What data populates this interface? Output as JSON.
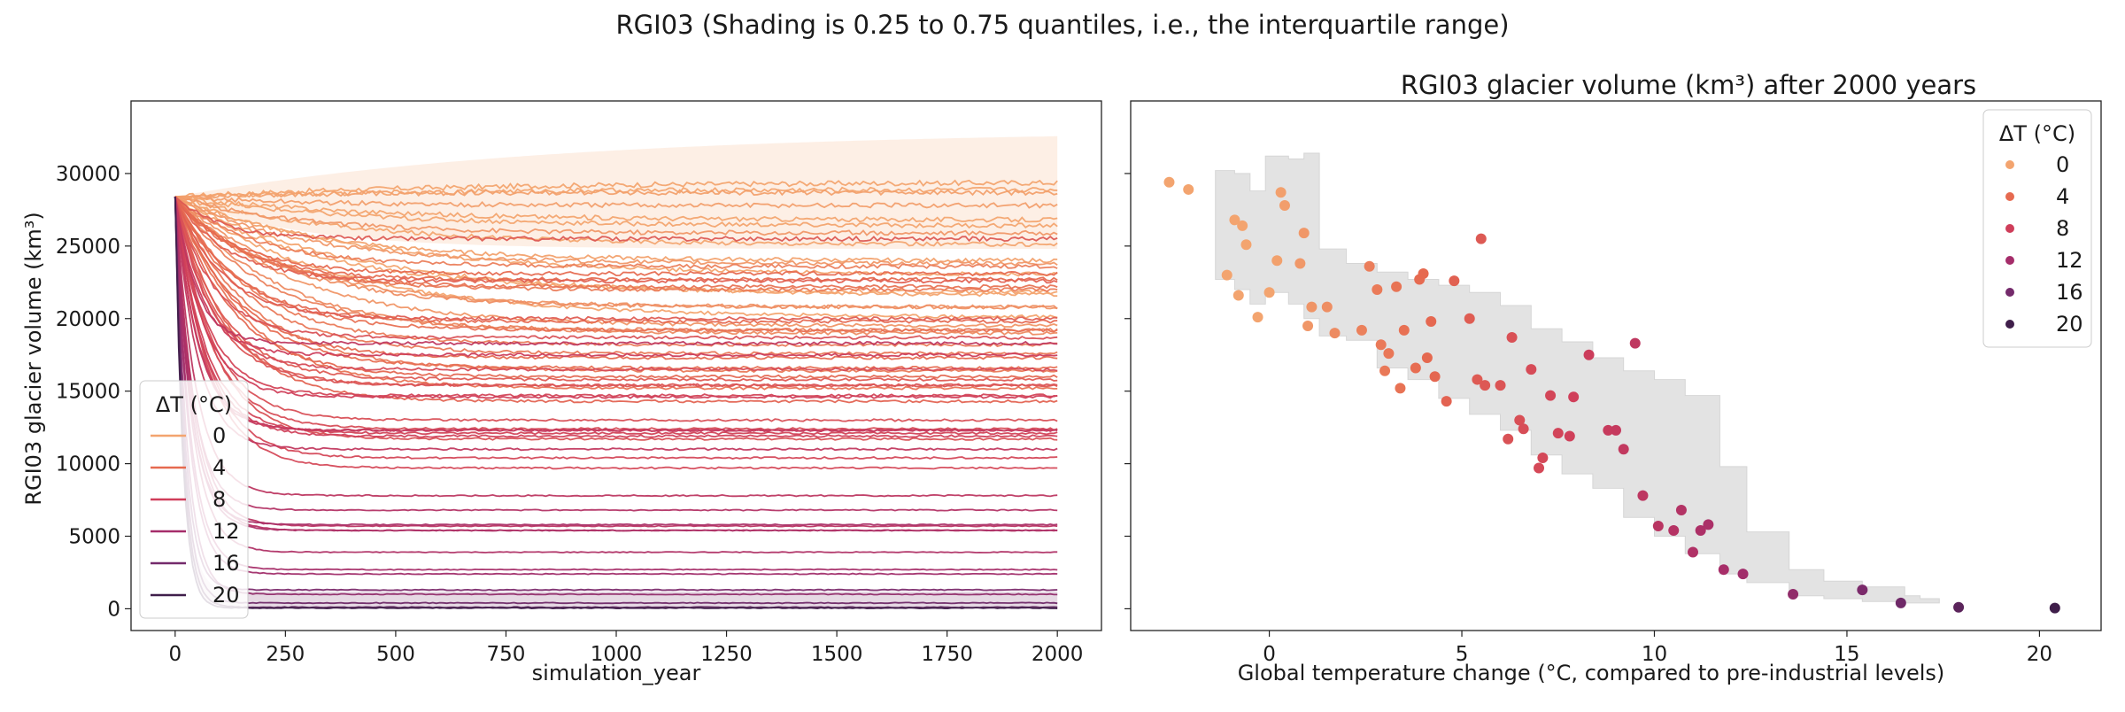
{
  "figure": {
    "suptitle": "RGI03 (Shading is 0.25 to 0.75 quantiles, i.e., the interquartile range)"
  },
  "chart_data": [
    {
      "type": "line",
      "title": "",
      "xlabel": "simulation_year",
      "ylabel": "RGI03 glacier volume (km³)",
      "xlim": [
        -100,
        2100
      ],
      "ylim": [
        -1500,
        35000
      ],
      "xticks": [
        0,
        250,
        500,
        750,
        1000,
        1250,
        1500,
        1750,
        2000
      ],
      "yticks": [
        0,
        5000,
        10000,
        15000,
        20000,
        25000,
        30000
      ],
      "xtick_labels": [
        "0",
        "250",
        "500",
        "750",
        "1000",
        "1250",
        "1500",
        "1750",
        "2000"
      ],
      "ytick_labels": [
        "0",
        "5000",
        "10000",
        "15000",
        "20000",
        "25000",
        "30000"
      ],
      "initial_volume": 28400,
      "x_range": [
        0,
        2000
      ],
      "grid": false,
      "legend": {
        "title": "ΔT (°C)",
        "placement": "lower-left",
        "entries": [
          "0",
          "4",
          "8",
          "12",
          "16",
          "20"
        ]
      },
      "colors": {
        "dT0": "#f3a46f",
        "dT4": "#e66a50",
        "dT8": "#cf3e5a",
        "dT12": "#a52d6a",
        "dT16": "#742a6b",
        "dT20": "#3f1e4a",
        "shade_low": "#742a6b",
        "shade_high": "#f3a46f"
      },
      "shading": [
        {
          "series": "20",
          "quantile_range": [
            0.25,
            0.75
          ],
          "upper_final": 1200,
          "lower_final": 50
        },
        {
          "series": "0",
          "quantile_range": [
            0.25,
            0.75
          ],
          "upper_final": 33000,
          "lower_final": 24800
        }
      ],
      "series": [
        {
          "dT": -2.6,
          "final": 29400
        },
        {
          "dT": -2.1,
          "final": 28900
        },
        {
          "dT": -0.9,
          "final": 26800
        },
        {
          "dT": -0.7,
          "final": 26400
        },
        {
          "dT": -0.6,
          "final": 25100
        },
        {
          "dT": -0.3,
          "final": 20100
        },
        {
          "dT": 0.2,
          "final": 24000
        },
        {
          "dT": 0.3,
          "final": 28700
        },
        {
          "dT": 0.4,
          "final": 27800
        },
        {
          "dT": 0.9,
          "final": 25900
        },
        {
          "dT": -1.1,
          "final": 23000
        },
        {
          "dT": -0.8,
          "final": 21600
        },
        {
          "dT": 0.0,
          "final": 21800
        },
        {
          "dT": 0.8,
          "final": 23800
        },
        {
          "dT": 1.0,
          "final": 19500
        },
        {
          "dT": 1.1,
          "final": 20800
        },
        {
          "dT": 1.7,
          "final": 19000
        },
        {
          "dT": 1.5,
          "final": 20800
        },
        {
          "dT": 2.4,
          "final": 19200
        },
        {
          "dT": 2.6,
          "final": 23600
        },
        {
          "dT": 2.8,
          "final": 22000
        },
        {
          "dT": 2.9,
          "final": 18200
        },
        {
          "dT": 3.0,
          "final": 16400
        },
        {
          "dT": 3.1,
          "final": 17600
        },
        {
          "dT": 3.3,
          "final": 22200
        },
        {
          "dT": 3.5,
          "final": 19200
        },
        {
          "dT": 3.4,
          "final": 15200
        },
        {
          "dT": 3.8,
          "final": 16600
        },
        {
          "dT": 3.9,
          "final": 22700
        },
        {
          "dT": 4.0,
          "final": 23100
        },
        {
          "dT": 4.1,
          "final": 17300
        },
        {
          "dT": 4.2,
          "final": 19800
        },
        {
          "dT": 4.3,
          "final": 16000
        },
        {
          "dT": 4.6,
          "final": 14300
        },
        {
          "dT": 4.8,
          "final": 22600
        },
        {
          "dT": 5.2,
          "final": 20000
        },
        {
          "dT": 5.4,
          "final": 15800
        },
        {
          "dT": 5.5,
          "final": 25500
        },
        {
          "dT": 5.6,
          "final": 15400
        },
        {
          "dT": 6.0,
          "final": 15400
        },
        {
          "dT": 6.2,
          "final": 11700
        },
        {
          "dT": 6.3,
          "final": 18700
        },
        {
          "dT": 6.5,
          "final": 13000
        },
        {
          "dT": 6.6,
          "final": 12400
        },
        {
          "dT": 6.8,
          "final": 16500
        },
        {
          "dT": 7.0,
          "final": 9700
        },
        {
          "dT": 7.1,
          "final": 10400
        },
        {
          "dT": 7.3,
          "final": 14700
        },
        {
          "dT": 7.5,
          "final": 12100
        },
        {
          "dT": 7.8,
          "final": 11900
        },
        {
          "dT": 7.9,
          "final": 14600
        },
        {
          "dT": 8.3,
          "final": 17500
        },
        {
          "dT": 8.8,
          "final": 12300
        },
        {
          "dT": 9.0,
          "final": 12300
        },
        {
          "dT": 9.2,
          "final": 11000
        },
        {
          "dT": 9.5,
          "final": 18300
        },
        {
          "dT": 9.7,
          "final": 7800
        },
        {
          "dT": 10.1,
          "final": 5700
        },
        {
          "dT": 10.5,
          "final": 5400
        },
        {
          "dT": 10.7,
          "final": 6800
        },
        {
          "dT": 11.0,
          "final": 3900
        },
        {
          "dT": 11.2,
          "final": 5400
        },
        {
          "dT": 11.4,
          "final": 5800
        },
        {
          "dT": 11.8,
          "final": 2700
        },
        {
          "dT": 12.3,
          "final": 2400
        },
        {
          "dT": 13.6,
          "final": 1000
        },
        {
          "dT": 15.4,
          "final": 1300
        },
        {
          "dT": 16.4,
          "final": 400
        },
        {
          "dT": 17.9,
          "final": 100
        },
        {
          "dT": 20.4,
          "final": 50
        }
      ]
    },
    {
      "type": "scatter",
      "title": "RGI03 glacier volume (km³) after 2000 years",
      "xlabel": "Global temperature change (°C, compared to pre-industrial levels)",
      "ylabel": "",
      "xlim": [
        -3.6,
        21.6
      ],
      "ylim": [
        -1500,
        35000
      ],
      "xticks": [
        0,
        5,
        10,
        15,
        20
      ],
      "xtick_labels": [
        "0",
        "5",
        "10",
        "15",
        "20"
      ],
      "yticks": [
        0,
        5000,
        10000,
        15000,
        20000,
        25000,
        30000
      ],
      "y_tick_labels_shown": false,
      "grid": false,
      "legend": {
        "title": "ΔT (°C)",
        "placement": "top-right",
        "entries": [
          "0",
          "4",
          "8",
          "12",
          "16",
          "20"
        ]
      },
      "band_color": "#e3e3e3",
      "band": [
        {
          "x": -1.4,
          "lo": 22700,
          "hi": 30200
        },
        {
          "x": -0.9,
          "lo": 22000,
          "hi": 30000
        },
        {
          "x": -0.5,
          "lo": 21000,
          "hi": 28800
        },
        {
          "x": -0.1,
          "lo": 21800,
          "hi": 31200
        },
        {
          "x": 0.5,
          "lo": 21000,
          "hi": 31000
        },
        {
          "x": 0.9,
          "lo": 20000,
          "hi": 31400
        },
        {
          "x": 1.3,
          "lo": 18800,
          "hi": 24800
        },
        {
          "x": 2.0,
          "lo": 18500,
          "hi": 23800
        },
        {
          "x": 2.8,
          "lo": 16600,
          "hi": 23200
        },
        {
          "x": 3.6,
          "lo": 15800,
          "hi": 22700
        },
        {
          "x": 4.4,
          "lo": 14500,
          "hi": 22300
        },
        {
          "x": 5.2,
          "lo": 13400,
          "hi": 21800
        },
        {
          "x": 6.0,
          "lo": 12300,
          "hi": 20900
        },
        {
          "x": 6.8,
          "lo": 10600,
          "hi": 19300
        },
        {
          "x": 7.6,
          "lo": 9300,
          "hi": 18400
        },
        {
          "x": 8.4,
          "lo": 8300,
          "hi": 17300
        },
        {
          "x": 9.2,
          "lo": 6300,
          "hi": 16400
        },
        {
          "x": 10.0,
          "lo": 5000,
          "hi": 15800
        },
        {
          "x": 10.8,
          "lo": 3800,
          "hi": 14700
        },
        {
          "x": 11.7,
          "lo": 2400,
          "hi": 9800
        },
        {
          "x": 12.4,
          "lo": 1800,
          "hi": 5300
        },
        {
          "x": 13.5,
          "lo": 900,
          "hi": 2700
        },
        {
          "x": 14.4,
          "lo": 700,
          "hi": 1900
        },
        {
          "x": 15.4,
          "lo": 500,
          "hi": 1500
        },
        {
          "x": 16.5,
          "lo": 400,
          "hi": 900
        },
        {
          "x": 16.9,
          "lo": 400,
          "hi": 700
        }
      ],
      "points": [
        {
          "x": -2.6,
          "y": 29400
        },
        {
          "x": -2.1,
          "y": 28900
        },
        {
          "x": -1.1,
          "y": 23000
        },
        {
          "x": -0.9,
          "y": 26800
        },
        {
          "x": -0.7,
          "y": 26400
        },
        {
          "x": -0.6,
          "y": 25100
        },
        {
          "x": -0.8,
          "y": 21600
        },
        {
          "x": -0.3,
          "y": 20100
        },
        {
          "x": 0.0,
          "y": 21800
        },
        {
          "x": 0.2,
          "y": 24000
        },
        {
          "x": 0.3,
          "y": 28700
        },
        {
          "x": 0.4,
          "y": 27800
        },
        {
          "x": 0.8,
          "y": 23800
        },
        {
          "x": 0.9,
          "y": 25900
        },
        {
          "x": 1.0,
          "y": 19500
        },
        {
          "x": 1.1,
          "y": 20800
        },
        {
          "x": 1.5,
          "y": 20800
        },
        {
          "x": 1.7,
          "y": 19000
        },
        {
          "x": 2.4,
          "y": 19200
        },
        {
          "x": 2.6,
          "y": 23600
        },
        {
          "x": 2.8,
          "y": 22000
        },
        {
          "x": 2.9,
          "y": 18200
        },
        {
          "x": 3.0,
          "y": 16400
        },
        {
          "x": 3.1,
          "y": 17600
        },
        {
          "x": 3.3,
          "y": 22200
        },
        {
          "x": 3.4,
          "y": 15200
        },
        {
          "x": 3.5,
          "y": 19200
        },
        {
          "x": 3.8,
          "y": 16600
        },
        {
          "x": 3.9,
          "y": 22700
        },
        {
          "x": 4.0,
          "y": 23100
        },
        {
          "x": 4.1,
          "y": 17300
        },
        {
          "x": 4.2,
          "y": 19800
        },
        {
          "x": 4.3,
          "y": 16000
        },
        {
          "x": 4.6,
          "y": 14300
        },
        {
          "x": 4.8,
          "y": 22600
        },
        {
          "x": 5.2,
          "y": 20000
        },
        {
          "x": 5.4,
          "y": 15800
        },
        {
          "x": 5.5,
          "y": 25500
        },
        {
          "x": 5.6,
          "y": 15400
        },
        {
          "x": 6.0,
          "y": 15400
        },
        {
          "x": 6.2,
          "y": 11700
        },
        {
          "x": 6.3,
          "y": 18700
        },
        {
          "x": 6.5,
          "y": 13000
        },
        {
          "x": 6.6,
          "y": 12400
        },
        {
          "x": 6.8,
          "y": 16500
        },
        {
          "x": 7.0,
          "y": 9700
        },
        {
          "x": 7.1,
          "y": 10400
        },
        {
          "x": 7.3,
          "y": 14700
        },
        {
          "x": 7.5,
          "y": 12100
        },
        {
          "x": 7.8,
          "y": 11900
        },
        {
          "x": 7.9,
          "y": 14600
        },
        {
          "x": 8.3,
          "y": 17500
        },
        {
          "x": 8.8,
          "y": 12300
        },
        {
          "x": 9.0,
          "y": 12300
        },
        {
          "x": 9.2,
          "y": 11000
        },
        {
          "x": 9.5,
          "y": 18300
        },
        {
          "x": 9.7,
          "y": 7800
        },
        {
          "x": 10.1,
          "y": 5700
        },
        {
          "x": 10.5,
          "y": 5400
        },
        {
          "x": 10.7,
          "y": 6800
        },
        {
          "x": 11.0,
          "y": 3900
        },
        {
          "x": 11.2,
          "y": 5400
        },
        {
          "x": 11.4,
          "y": 5800
        },
        {
          "x": 11.8,
          "y": 2700
        },
        {
          "x": 12.3,
          "y": 2400
        },
        {
          "x": 13.6,
          "y": 1000
        },
        {
          "x": 15.4,
          "y": 1300
        },
        {
          "x": 16.4,
          "y": 400
        },
        {
          "x": 17.9,
          "y": 100
        },
        {
          "x": 20.4,
          "y": 50
        }
      ]
    }
  ]
}
